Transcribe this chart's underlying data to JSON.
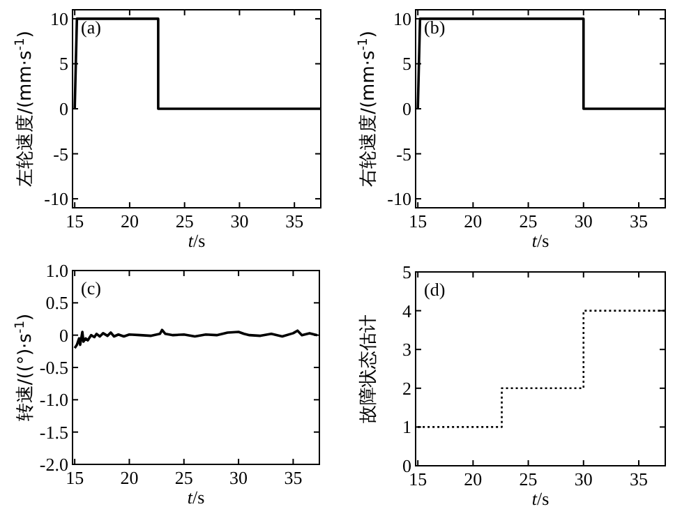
{
  "chart_data": [
    {
      "type": "line",
      "ylabel": "左轮速度/(mm·s$^{-1}$)",
      "xlabel": "t/s",
      "annotations": [
        "(a)"
      ],
      "xlim": [
        14.8,
        37.4
      ],
      "xticks": [
        15,
        20,
        25,
        30,
        35
      ],
      "ylim": [
        -11,
        11
      ],
      "yticks": [
        -10,
        -5,
        0,
        5,
        10
      ],
      "grid": false,
      "color": "#000000",
      "x": [
        15,
        15.2,
        22.6,
        22.6,
        37.4
      ],
      "values": [
        0,
        10,
        10,
        0,
        0
      ]
    },
    {
      "type": "line",
      "ylabel": "右轮速度/(mm·s$^{-1}$)",
      "xlabel": "t/s",
      "annotations": [
        "(b)"
      ],
      "xlim": [
        14.8,
        37.4
      ],
      "xticks": [
        15,
        20,
        25,
        30,
        35
      ],
      "ylim": [
        -11,
        11
      ],
      "yticks": [
        -10,
        -5,
        0,
        5,
        10
      ],
      "grid": false,
      "color": "#000000",
      "x": [
        15,
        15.2,
        30,
        30,
        37.4
      ],
      "values": [
        0,
        10,
        10,
        0,
        0
      ]
    },
    {
      "type": "line",
      "ylabel": "转速/((°)·s$^{-1}$)",
      "xlabel": "t/s",
      "annotations": [
        "(c)"
      ],
      "xlim": [
        14.8,
        37.4
      ],
      "xticks": [
        15,
        20,
        25,
        30,
        35
      ],
      "ylim": [
        -2,
        1
      ],
      "yticks": [
        {
          "value": -2,
          "label": "-2.0"
        },
        -1.5,
        {
          "value": -1,
          "label": "-1.0"
        },
        -0.5,
        0,
        0.5,
        {
          "value": 1,
          "label": "1.0"
        }
      ],
      "grid": false,
      "color": "#000000",
      "x": [
        15,
        15.2,
        15.4,
        15.5,
        15.7,
        15.8,
        16,
        16.2,
        16.5,
        16.8,
        17,
        17.3,
        17.6,
        18,
        18.3,
        18.6,
        19,
        19.5,
        20,
        21,
        22,
        22.8,
        23,
        23.3,
        24,
        25,
        26,
        27,
        28,
        29,
        30,
        30.5,
        31,
        32,
        33,
        34,
        35,
        35.4,
        35.8,
        36.5,
        37.2
      ],
      "values": [
        -0.2,
        -0.15,
        -0.05,
        -0.15,
        0.05,
        -0.1,
        -0.05,
        -0.08,
        0,
        -0.03,
        0.02,
        -0.02,
        0.03,
        -0.01,
        0.04,
        -0.02,
        0.01,
        -0.02,
        0.01,
        0,
        -0.01,
        0.02,
        0.08,
        0.02,
        0,
        0.01,
        -0.02,
        0.01,
        0,
        0.04,
        0.05,
        0.02,
        0,
        -0.01,
        0.02,
        -0.02,
        0.03,
        0.07,
        0,
        0.03,
        0
      ]
    },
    {
      "type": "step",
      "ylabel": "故障状态估计",
      "xlabel": "t/s",
      "annotations": [
        "(d)"
      ],
      "xlim": [
        14.8,
        37.4
      ],
      "xticks": [
        15,
        20,
        25,
        30,
        35
      ],
      "ylim": [
        0,
        5
      ],
      "yticks": [
        0,
        1,
        2,
        3,
        4,
        5
      ],
      "grid": false,
      "line_style": "dotted",
      "color": "#000000",
      "x": [
        15,
        22.6,
        30,
        37.4
      ],
      "values": [
        1,
        2,
        4,
        4
      ]
    }
  ]
}
